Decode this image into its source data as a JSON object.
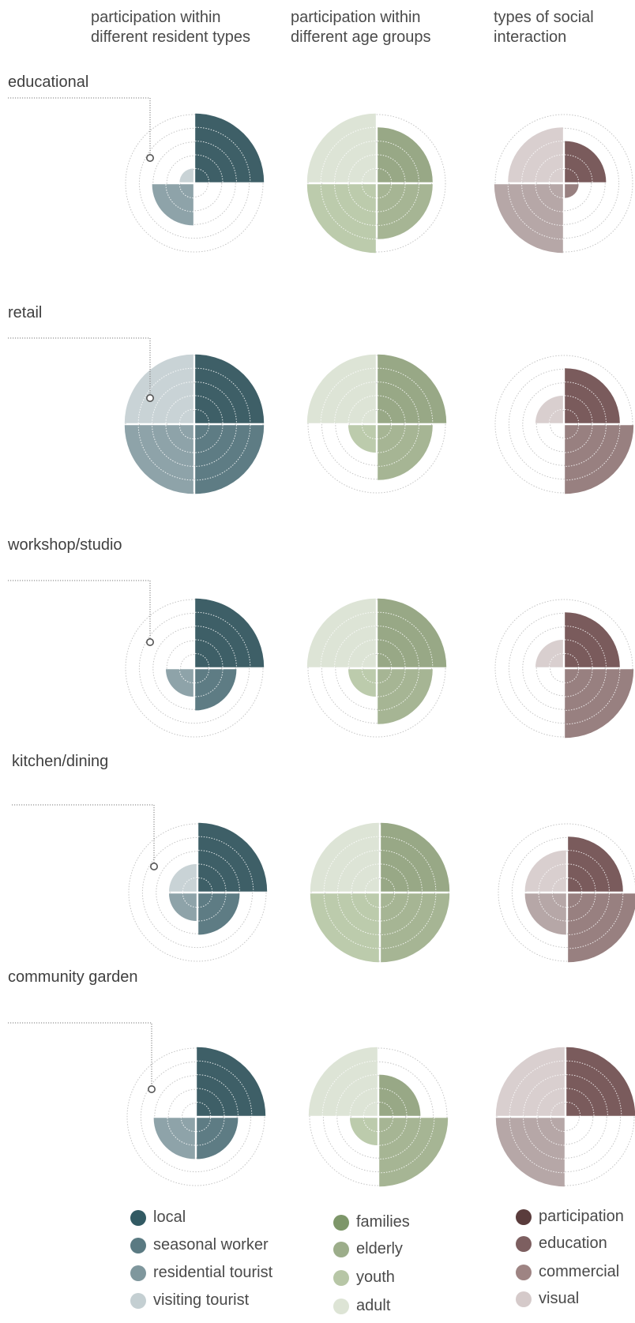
{
  "headers": [
    "participation within\ndifferent resident types",
    "participation within\ndifferent age groups",
    "types of social\ninteraction"
  ],
  "ring_max": 5,
  "columns": [
    {
      "key": "resident",
      "colors": [
        "#3e5f67",
        "#5e7c84",
        "#8ea3a9",
        "#c9d3d6"
      ]
    },
    {
      "key": "age",
      "colors": [
        "#98a886",
        "#a6b594",
        "#bccbac",
        "#dde4d6"
      ]
    },
    {
      "key": "social",
      "colors": [
        "#7a5b5c",
        "#988080",
        "#b6a7a7",
        "#d9cfcf"
      ]
    }
  ],
  "legends": [
    {
      "items": [
        {
          "label": "local",
          "color": "#325a63"
        },
        {
          "label": "seasonal worker",
          "color": "#5a7a82"
        },
        {
          "label": "residential tourist",
          "color": "#7f979d"
        },
        {
          "label": "visiting tourist",
          "color": "#c4cfd2"
        }
      ]
    },
    {
      "items": [
        {
          "label": "families",
          "color": "#7d9669"
        },
        {
          "label": "elderly",
          "color": "#9cad8a"
        },
        {
          "label": "youth",
          "color": "#b7c6a6"
        },
        {
          "label": "adult",
          "color": "#dde4d5"
        }
      ]
    },
    {
      "items": [
        {
          "label": "participation",
          "color": "#5a3c3c"
        },
        {
          "label": "education",
          "color": "#7d5f60"
        },
        {
          "label": "commercial",
          "color": "#9e8483"
        },
        {
          "label": "visual",
          "color": "#d5caca"
        }
      ]
    }
  ],
  "chart_data": [
    {
      "type": "polar-area",
      "title": "educational",
      "resident": {
        "top_right": 5,
        "bottom_right": 0,
        "bottom_left": 3,
        "top_left": 1
      },
      "age": {
        "top_right": 4,
        "bottom_right": 4,
        "bottom_left": 5,
        "top_left": 5
      },
      "social": {
        "top_right": 3,
        "bottom_right": 1,
        "bottom_left": 5,
        "top_left": 4
      }
    },
    {
      "type": "polar-area",
      "title": "retail",
      "resident": {
        "top_right": 5,
        "bottom_right": 5,
        "bottom_left": 5,
        "top_left": 5
      },
      "age": {
        "top_right": 5,
        "bottom_right": 4,
        "bottom_left": 2,
        "top_left": 5
      },
      "social": {
        "top_right": 4,
        "bottom_right": 5,
        "bottom_left": 0,
        "top_left": 2
      }
    },
    {
      "type": "polar-area",
      "title": "workshop/studio",
      "resident": {
        "top_right": 5,
        "bottom_right": 3,
        "bottom_left": 2,
        "top_left": 0
      },
      "age": {
        "top_right": 5,
        "bottom_right": 4,
        "bottom_left": 2,
        "top_left": 5
      },
      "social": {
        "top_right": 4,
        "bottom_right": 5,
        "bottom_left": 0,
        "top_left": 2
      }
    },
    {
      "type": "polar-area",
      "title": "kitchen/dining",
      "resident": {
        "top_right": 5,
        "bottom_right": 3,
        "bottom_left": 2,
        "top_left": 2
      },
      "age": {
        "top_right": 5,
        "bottom_right": 5,
        "bottom_left": 5,
        "top_left": 5
      },
      "social": {
        "top_right": 4,
        "bottom_right": 5,
        "bottom_left": 3,
        "top_left": 3
      }
    },
    {
      "type": "polar-area",
      "title": "community garden",
      "resident": {
        "top_right": 5,
        "bottom_right": 3,
        "bottom_left": 3,
        "top_left": 0
      },
      "age": {
        "top_right": 3,
        "bottom_right": 5,
        "bottom_left": 2,
        "top_left": 5
      },
      "social": {
        "top_right": 5,
        "bottom_right": 0,
        "bottom_left": 5,
        "top_left": 5
      }
    }
  ]
}
